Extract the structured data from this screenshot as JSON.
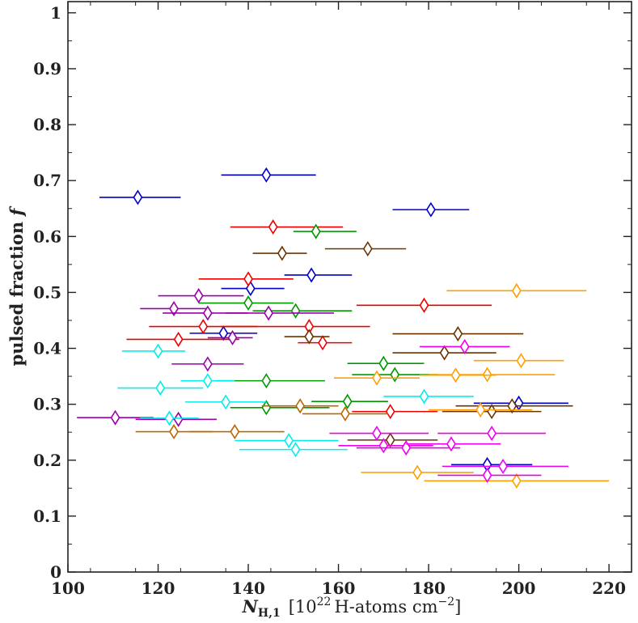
{
  "chart_data": {
    "type": "scatter",
    "xlim": [
      100,
      225
    ],
    "ylim": [
      0,
      1.02
    ],
    "x_ticks": [
      "100",
      "120",
      "140",
      "160",
      "180",
      "200",
      "220"
    ],
    "y_ticks": [
      "0",
      "0.1",
      "0.2",
      "0.3",
      "0.4",
      "0.5",
      "0.6",
      "0.7",
      "0.8",
      "0.9",
      "1"
    ],
    "xlabel": {
      "main": "N",
      "sub": "H,1",
      "unit_open": "[10",
      "unit_exp": "22",
      "unit_text": "H-atoms cm",
      "unit_exp2": "−2",
      "unit_close": "]"
    },
    "ylabel": {
      "main": "pulsed fraction",
      "var": "f"
    },
    "grid": false,
    "marker": "diamond",
    "series": [
      {
        "color": "#0000cc",
        "points": [
          {
            "x": 115.5,
            "y": 0.67,
            "xerr": [
              107,
              125
            ]
          },
          {
            "x": 144.0,
            "y": 0.71,
            "xerr": [
              134,
              155
            ]
          },
          {
            "x": 180.5,
            "y": 0.648,
            "xerr": [
              172,
              189
            ]
          },
          {
            "x": 154.0,
            "y": 0.531,
            "xerr": [
              148,
              163
            ]
          },
          {
            "x": 140.5,
            "y": 0.507,
            "xerr": [
              134,
              148
            ]
          },
          {
            "x": 134.5,
            "y": 0.427,
            "xerr": [
              127,
              142
            ]
          },
          {
            "x": 200.0,
            "y": 0.302,
            "xerr": [
              190,
              211
            ]
          },
          {
            "x": 193.0,
            "y": 0.192,
            "xerr": [
              185,
              203
            ]
          }
        ]
      },
      {
        "color": "#ee0000",
        "points": [
          {
            "x": 145.5,
            "y": 0.617,
            "xerr": [
              136,
              161
            ]
          },
          {
            "x": 140.0,
            "y": 0.524,
            "xerr": [
              129,
              150
            ]
          },
          {
            "x": 153.5,
            "y": 0.439,
            "xerr": [
              134,
              167
            ]
          },
          {
            "x": 130.0,
            "y": 0.439,
            "xerr": [
              118,
              142
            ]
          },
          {
            "x": 124.5,
            "y": 0.416,
            "xerr": [
              113,
              138
            ]
          },
          {
            "x": 156.5,
            "y": 0.41,
            "xerr": [
              151,
              163
            ]
          },
          {
            "x": 179.0,
            "y": 0.477,
            "xerr": [
              164,
              194
            ]
          },
          {
            "x": 171.5,
            "y": 0.287,
            "xerr": [
              163,
              182
            ]
          }
        ]
      },
      {
        "color": "#009900",
        "points": [
          {
            "x": 155.0,
            "y": 0.609,
            "xerr": [
              150,
              164
            ]
          },
          {
            "x": 140.0,
            "y": 0.481,
            "xerr": [
              129,
              150
            ]
          },
          {
            "x": 150.5,
            "y": 0.467,
            "xerr": [
              141,
              163
            ]
          },
          {
            "x": 144.0,
            "y": 0.342,
            "xerr": [
              133,
              157
            ]
          },
          {
            "x": 144.0,
            "y": 0.294,
            "xerr": [
              136,
              158
            ]
          },
          {
            "x": 162.0,
            "y": 0.305,
            "xerr": [
              154,
              171
            ]
          },
          {
            "x": 170.0,
            "y": 0.373,
            "xerr": [
              162,
              179
            ]
          },
          {
            "x": 172.5,
            "y": 0.353,
            "xerr": [
              163,
              182
            ]
          }
        ]
      },
      {
        "color": "#6b3300",
        "points": [
          {
            "x": 147.5,
            "y": 0.57,
            "xerr": [
              141,
              153
            ]
          },
          {
            "x": 166.5,
            "y": 0.578,
            "xerr": [
              157,
              175
            ]
          },
          {
            "x": 153.5,
            "y": 0.421,
            "xerr": [
              148,
              158
            ]
          },
          {
            "x": 186.5,
            "y": 0.426,
            "xerr": [
              172,
              201
            ]
          },
          {
            "x": 183.5,
            "y": 0.392,
            "xerr": [
              172,
              195
            ]
          },
          {
            "x": 171.5,
            "y": 0.236,
            "xerr": [
              162,
              182
            ]
          },
          {
            "x": 198.5,
            "y": 0.297,
            "xerr": [
              186,
              212
            ]
          },
          {
            "x": 194.0,
            "y": 0.287,
            "xerr": [
              183,
              205
            ]
          }
        ]
      },
      {
        "color": "#9900aa",
        "points": [
          {
            "x": 129.0,
            "y": 0.494,
            "xerr": [
              120,
              139
            ]
          },
          {
            "x": 123.5,
            "y": 0.471,
            "xerr": [
              116,
              131
            ]
          },
          {
            "x": 131.0,
            "y": 0.463,
            "xerr": [
              121,
              140
            ]
          },
          {
            "x": 144.5,
            "y": 0.463,
            "xerr": [
              135,
              159
            ]
          },
          {
            "x": 136.5,
            "y": 0.419,
            "xerr": [
              131,
              141
            ]
          },
          {
            "x": 131.0,
            "y": 0.372,
            "xerr": [
              123,
              139
            ]
          },
          {
            "x": 110.5,
            "y": 0.276,
            "xerr": [
              102,
              119
            ]
          },
          {
            "x": 124.5,
            "y": 0.273,
            "xerr": [
              115,
              133
            ]
          }
        ]
      },
      {
        "color": "#00eeee",
        "points": [
          {
            "x": 120.0,
            "y": 0.395,
            "xerr": [
              112,
              126
            ]
          },
          {
            "x": 131.0,
            "y": 0.342,
            "xerr": [
              125,
              137
            ]
          },
          {
            "x": 120.5,
            "y": 0.329,
            "xerr": [
              111,
              130
            ]
          },
          {
            "x": 135.0,
            "y": 0.304,
            "xerr": [
              126,
              144
            ]
          },
          {
            "x": 122.5,
            "y": 0.275,
            "xerr": [
              116,
              129
            ]
          },
          {
            "x": 149.0,
            "y": 0.235,
            "xerr": [
              137,
              160
            ]
          },
          {
            "x": 150.5,
            "y": 0.219,
            "xerr": [
              138,
              162
            ]
          },
          {
            "x": 179.0,
            "y": 0.314,
            "xerr": [
              170,
              190
            ]
          }
        ]
      },
      {
        "color": "#bb6600",
        "points": [
          {
            "x": 123.5,
            "y": 0.251,
            "xerr": [
              115,
              132
            ]
          },
          {
            "x": 137.0,
            "y": 0.251,
            "xerr": [
              127,
              148
            ]
          },
          {
            "x": 151.5,
            "y": 0.297,
            "xerr": [
              143,
              160
            ]
          },
          {
            "x": 161.5,
            "y": 0.283,
            "xerr": [
              152,
              171
            ]
          }
        ]
      },
      {
        "color": "#ffa000",
        "points": [
          {
            "x": 199.5,
            "y": 0.503,
            "xerr": [
              184,
              215
            ]
          },
          {
            "x": 200.5,
            "y": 0.378,
            "xerr": [
              190,
              210
            ]
          },
          {
            "x": 193.0,
            "y": 0.353,
            "xerr": [
              180,
              208
            ]
          },
          {
            "x": 186.0,
            "y": 0.352,
            "xerr": [
              178,
              195
            ]
          },
          {
            "x": 168.5,
            "y": 0.347,
            "xerr": [
              159,
              178
            ]
          },
          {
            "x": 191.5,
            "y": 0.29,
            "xerr": [
              180,
              203
            ]
          },
          {
            "x": 177.5,
            "y": 0.178,
            "xerr": [
              165,
              190
            ]
          },
          {
            "x": 199.5,
            "y": 0.163,
            "xerr": [
              179,
              220
            ]
          }
        ]
      },
      {
        "color": "#ee00ee",
        "points": [
          {
            "x": 188.0,
            "y": 0.403,
            "xerr": [
              178,
              198
            ]
          },
          {
            "x": 168.5,
            "y": 0.248,
            "xerr": [
              158,
              180
            ]
          },
          {
            "x": 194.0,
            "y": 0.248,
            "xerr": [
              182,
              206
            ]
          },
          {
            "x": 170.0,
            "y": 0.226,
            "xerr": [
              160,
              181
            ]
          },
          {
            "x": 175.0,
            "y": 0.222,
            "xerr": [
              164,
              187
            ]
          },
          {
            "x": 185.0,
            "y": 0.229,
            "xerr": [
              175,
              196
            ]
          },
          {
            "x": 196.5,
            "y": 0.189,
            "xerr": [
              183,
              211
            ]
          },
          {
            "x": 193.0,
            "y": 0.173,
            "xerr": [
              182,
              205
            ]
          }
        ]
      }
    ]
  }
}
